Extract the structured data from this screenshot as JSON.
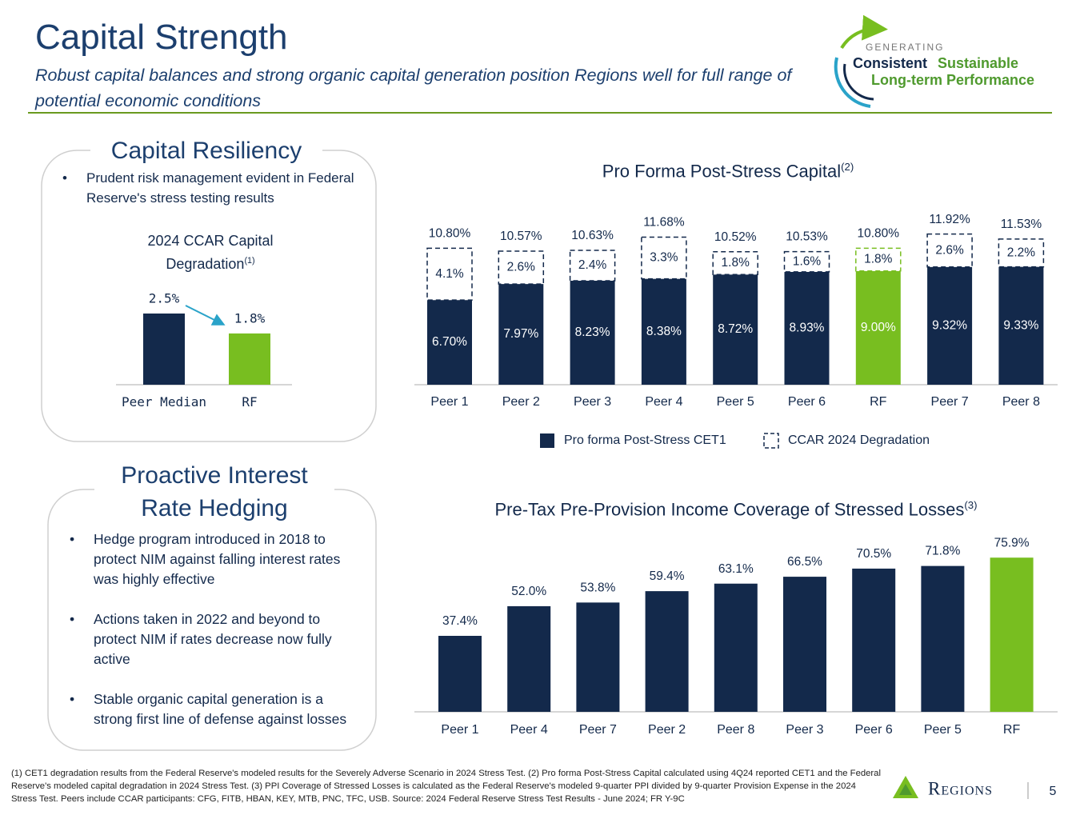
{
  "header": {
    "title": "Capital Strength",
    "subtitle": "Robust capital balances and strong organic capital generation position Regions well for full range of potential economic conditions"
  },
  "logo": {
    "kicker": "GENERATING",
    "word1": "Consistent",
    "word2": "Sustainable",
    "line2": "Long-term Performance"
  },
  "panels": [
    {
      "heading": "Capital Resiliency",
      "bullets": [
        "Prudent risk management evident in Federal Reserve's stress testing results"
      ]
    },
    {
      "heading": "Proactive Interest Rate Hedging",
      "bullets": [
        "Hedge program introduced in 2018 to protect NIM against falling interest rates was highly effective",
        "Actions taken in 2022 and beyond to protect NIM if rates decrease now fully active",
        "Stable organic capital generation is a strong first line of defense against losses"
      ]
    }
  ],
  "chart_data": [
    {
      "type": "bar",
      "title": "2024 CCAR Capital Degradation",
      "title_note": "(1)",
      "categories": [
        "Peer Median",
        "RF"
      ],
      "values": [
        2.5,
        1.8
      ],
      "value_labels": [
        "2.5%",
        "1.8%"
      ],
      "colors": [
        "#13294b",
        "#78be20"
      ]
    },
    {
      "type": "stacked_bar",
      "title": "Pro Forma Post-Stress Capital",
      "title_note": "(2)",
      "categories": [
        "Peer 1",
        "Peer 2",
        "Peer 3",
        "Peer 4",
        "Peer 5",
        "Peer 6",
        "RF",
        "Peer 7",
        "Peer 8"
      ],
      "series": [
        {
          "name": "Pro forma Post-Stress CET1",
          "color": "#13294b",
          "colors": [
            "#13294b",
            "#13294b",
            "#13294b",
            "#13294b",
            "#13294b",
            "#13294b",
            "#78be20",
            "#13294b",
            "#13294b"
          ],
          "values": [
            6.7,
            7.97,
            8.23,
            8.38,
            8.72,
            8.93,
            9.0,
            9.32,
            9.33
          ],
          "value_labels": [
            "6.70%",
            "7.97%",
            "8.23%",
            "8.38%",
            "8.72%",
            "8.93%",
            "9.00%",
            "9.32%",
            "9.33%"
          ]
        },
        {
          "name": "CCAR 2024 Degradation",
          "color": "#13294b",
          "colors": [
            "#13294b",
            "#13294b",
            "#13294b",
            "#13294b",
            "#13294b",
            "#13294b",
            "#78be20",
            "#13294b",
            "#13294b"
          ],
          "values": [
            4.1,
            2.6,
            2.4,
            3.3,
            1.8,
            1.6,
            1.8,
            2.6,
            2.2
          ],
          "value_labels": [
            "4.1%",
            "2.6%",
            "2.4%",
            "3.3%",
            "1.8%",
            "1.6%",
            "1.8%",
            "2.6%",
            "2.2%"
          ]
        }
      ],
      "totals": [
        10.8,
        10.57,
        10.63,
        11.68,
        10.52,
        10.53,
        10.8,
        11.92,
        11.53
      ],
      "total_labels": [
        "10.80%",
        "10.57%",
        "10.63%",
        "11.68%",
        "10.52%",
        "10.53%",
        "10.80%",
        "11.92%",
        "11.53%"
      ]
    },
    {
      "type": "bar",
      "title": "Pre-Tax Pre-Provision Income Coverage of Stressed Losses",
      "title_note": "(3)",
      "categories": [
        "Peer 1",
        "Peer 4",
        "Peer 7",
        "Peer 2",
        "Peer 8",
        "Peer 3",
        "Peer 6",
        "Peer 5",
        "RF"
      ],
      "values": [
        37.4,
        52.0,
        53.8,
        59.4,
        63.1,
        66.5,
        70.5,
        71.8,
        75.9
      ],
      "value_labels": [
        "37.4%",
        "52.0%",
        "53.8%",
        "59.4%",
        "63.1%",
        "66.5%",
        "70.5%",
        "71.8%",
        "75.9%"
      ],
      "colors": [
        "#13294b",
        "#13294b",
        "#13294b",
        "#13294b",
        "#13294b",
        "#13294b",
        "#13294b",
        "#13294b",
        "#78be20"
      ]
    }
  ],
  "footnote": "(1) CET1 degradation results from the Federal Reserve's modeled results for the Severely Adverse Scenario in 2024 Stress Test. (2) Pro forma Post-Stress Capital calculated using 4Q24 reported CET1 and the Federal Reserve's modeled capital degradation in 2024 Stress Test. (3) PPI Coverage of Stressed Losses is calculated as the Federal Reserve's modeled 9-quarter PPI divided by 9-quarter Provision Expense in the 2024 Stress Test. Peers include CCAR participants: CFG, FITB, HBAN, KEY, MTB, PNC, TFC, USB. Source: 2024 Federal Reserve Stress Test Results - June 2024; FR Y-9C",
  "brand": "Regions",
  "page_number": 5
}
